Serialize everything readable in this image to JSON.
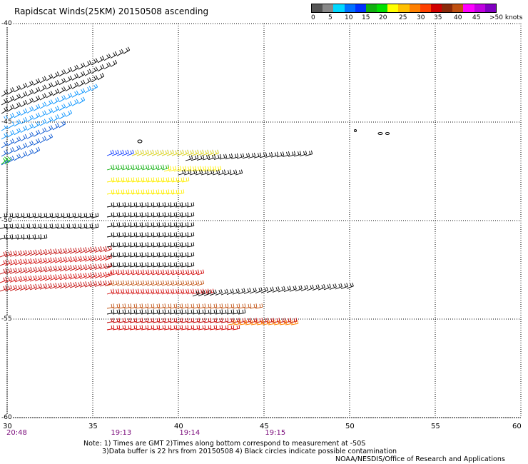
{
  "title": "Rapidscat Winds(25KM) 20150508 ascending",
  "legend": {
    "labels": [
      "0",
      "5",
      "10",
      "15",
      "20",
      "25",
      "30",
      "35",
      "40",
      "45",
      ">50 knots"
    ],
    "colors": [
      "#555555",
      "#888888",
      "#00d8ff",
      "#0070ff",
      "#0030ff",
      "#10b010",
      "#00e000",
      "#ffff00",
      "#ffc000",
      "#ff8000",
      "#ff4000",
      "#d00000",
      "#8b2a0a",
      "#c05010",
      "#ff00ff",
      "#c000e0",
      "#8000c0"
    ]
  },
  "map": {
    "lon_ticks": [
      "30",
      "35",
      "40",
      "45",
      "50",
      "55",
      "60"
    ],
    "lat_ticks": [
      "-40",
      "-45",
      "-50",
      "-55",
      "-60"
    ],
    "lon_range": [
      30,
      60
    ],
    "lat_range": [
      -40,
      -60
    ]
  },
  "times": [
    {
      "label": "20:48",
      "lon": 30.5
    },
    {
      "label": "19:13",
      "lon": 36.6
    },
    {
      "label": "19:14",
      "lon": 40.6
    },
    {
      "label": "19:15",
      "lon": 45.6
    }
  ],
  "notes": [
    "Note: 1) Times are GMT 2)Times along bottom correspond to measurement at -50S",
    "3)Data buffer is 22 hrs from 20150508 4) Black circles indicate possible contamination"
  ],
  "credit": "NOAA/NESDIS/Office of Research and Applications"
}
